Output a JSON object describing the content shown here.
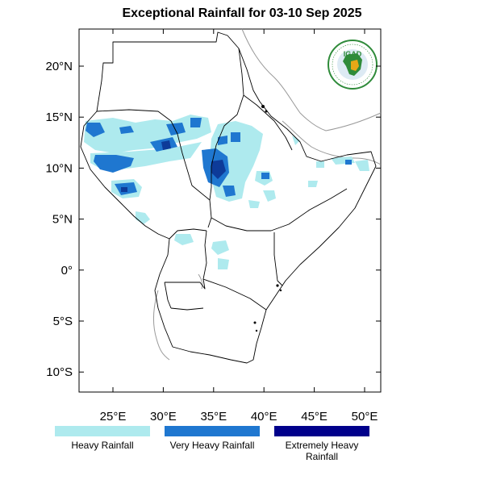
{
  "title": "Exceptional Rainfall for 03-10 Sep 2025",
  "logo": {
    "text": "IGAD",
    "colors": {
      "ring": "#2f8b3a",
      "land": "#e6a817",
      "water": "#1d70b8"
    }
  },
  "axes": {
    "lat_ticks": [
      "20°N",
      "15°N",
      "10°N",
      "5°N",
      "0°",
      "5°S",
      "10°S"
    ],
    "lon_ticks": [
      "25°E",
      "30°E",
      "35°E",
      "40°E",
      "45°E",
      "50°E"
    ]
  },
  "legend": [
    {
      "label": "Heavy Rainfall",
      "color": "#aeeaee"
    },
    {
      "label": "Very Heavy Rainfall",
      "color": "#1f77d0"
    },
    {
      "label": "Extremely Heavy Rainfall",
      "color": "#00008b"
    }
  ]
}
